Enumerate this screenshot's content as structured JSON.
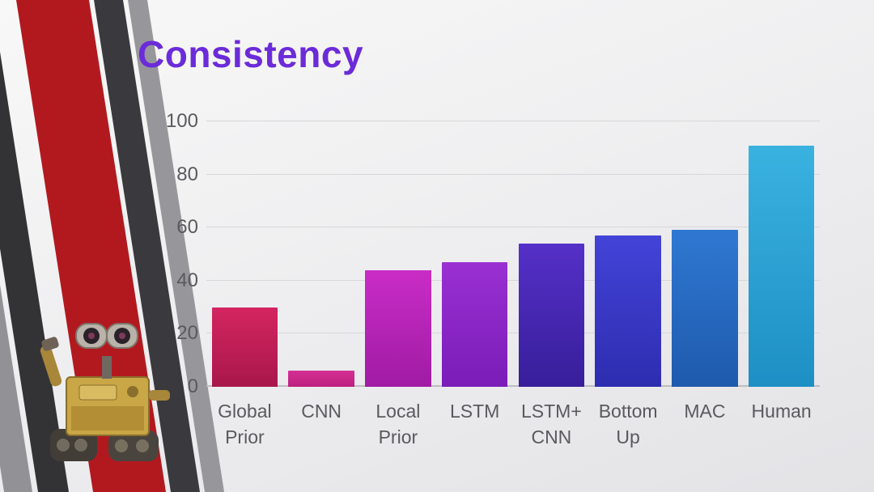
{
  "slide": {
    "title": "Consistency",
    "title_color": "#6c2bd9"
  },
  "decor": {
    "stripe_red": "#b2191f",
    "stripe_dark": "#333336",
    "stripe_gray": "#929296",
    "background_light": "#f8f8f8",
    "background_dark": "#e3e3e6",
    "walle_image": "walle-robot-illustration"
  },
  "chart_data": {
    "type": "bar",
    "title": "Consistency",
    "categories": [
      "Global Prior",
      "CNN",
      "Local Prior",
      "LSTM",
      "LSTM+ CNN",
      "Bottom Up",
      "MAC",
      "Human"
    ],
    "values": [
      30,
      6,
      44,
      47,
      54,
      57,
      59,
      91
    ],
    "xlabel": "",
    "ylabel": "",
    "ylim": [
      0,
      100
    ],
    "yticks": [
      0,
      20,
      40,
      60,
      80,
      100
    ],
    "grid": true,
    "legend": "none",
    "bar_colors": [
      {
        "top": "#d42560",
        "bottom": "#a8174a"
      },
      {
        "top": "#d63094",
        "bottom": "#bb217e"
      },
      {
        "top": "#c92cc6",
        "bottom": "#a01ba4"
      },
      {
        "top": "#9a30d2",
        "bottom": "#7a1cb8"
      },
      {
        "top": "#5530c8",
        "bottom": "#371e9a"
      },
      {
        "top": "#4343d8",
        "bottom": "#2d2db0"
      },
      {
        "top": "#2f78d2",
        "bottom": "#1e5aad"
      },
      {
        "top": "#3ab2e0",
        "bottom": "#1d8fc4"
      }
    ],
    "tick_label_color": "#5a5a5e",
    "gridline_color": "#d7d7da"
  }
}
